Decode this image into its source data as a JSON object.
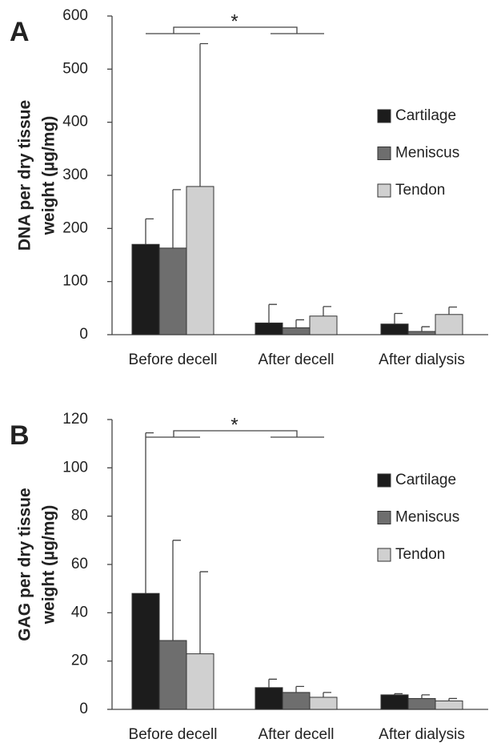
{
  "chart_data": [
    {
      "type": "bar",
      "panel_label": "A",
      "ylabel": [
        "DNA per dry tissue",
        "weight (µg/mg)"
      ],
      "categories": [
        "Before decell",
        "After decell",
        "After dialysis"
      ],
      "series": [
        {
          "name": "Cartilage",
          "color": "#1c1c1c",
          "values": [
            170,
            22,
            20
          ],
          "errors": [
            48,
            35,
            20
          ]
        },
        {
          "name": "Meniscus",
          "color": "#6e6e6e",
          "values": [
            163,
            13,
            6
          ],
          "errors": [
            110,
            15,
            9
          ]
        },
        {
          "name": "Tendon",
          "color": "#d0d0d0",
          "values": [
            279,
            35,
            38
          ],
          "errors": [
            269,
            18,
            14
          ]
        }
      ],
      "ylim": [
        0,
        600
      ],
      "yticks": [
        0,
        100,
        200,
        300,
        400,
        500,
        600
      ],
      "legend": "right",
      "annotation": "*"
    },
    {
      "type": "bar",
      "panel_label": "B",
      "ylabel": [
        "GAG per dry tissue",
        "weight (µg/mg)"
      ],
      "categories": [
        "Before decell",
        "After decell",
        "After dialysis"
      ],
      "series": [
        {
          "name": "Cartilage",
          "color": "#1c1c1c",
          "values": [
            48,
            9,
            6
          ],
          "errors": [
            66.5,
            3.5,
            0.5
          ]
        },
        {
          "name": "Meniscus",
          "color": "#6e6e6e",
          "values": [
            28.5,
            7,
            4.5
          ],
          "errors": [
            41.5,
            2.5,
            1.5
          ]
        },
        {
          "name": "Tendon",
          "color": "#d0d0d0",
          "values": [
            23,
            5,
            3.5
          ],
          "errors": [
            34,
            2,
            1
          ]
        }
      ],
      "ylim": [
        0,
        120
      ],
      "yticks": [
        0,
        20,
        40,
        60,
        80,
        100,
        120
      ],
      "legend": "right",
      "annotation": "*"
    }
  ]
}
